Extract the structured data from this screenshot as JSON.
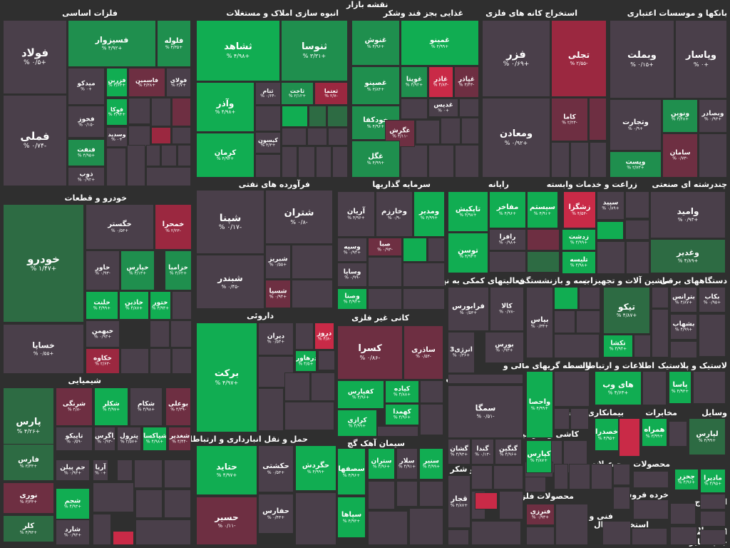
{
  "header": {
    "title": "نقشه بازار"
  },
  "colors": {
    "strong_green": "#11ad52",
    "green": "#1f8f4e",
    "dark_green": "#2d6b43",
    "neutral": "#4a3f4a",
    "dark_red": "#6e2f42",
    "red": "#9b2840",
    "bright_red": "#c92a47",
    "background": "#2f2f2f"
  },
  "sectors": [
    {
      "label": "فلزات اساسی",
      "symbols": [
        {
          "name": "فولاد",
          "change": "+۰/۵ %",
          "color": "neutral"
        },
        {
          "name": "فملی",
          "change": "-۰/۷۴ %",
          "color": "neutral"
        },
        {
          "name": "فسپزوار",
          "change": "+۴/۹۲ %",
          "color": "green"
        },
        {
          "name": "فلوله",
          "change": "+۴/۳۵ %",
          "color": "green"
        },
        {
          "name": "میدکو",
          "change": "+۰ %",
          "color": "neutral"
        },
        {
          "name": "فزرین",
          "change": "+۴/۶۳ %",
          "color": "strong_green"
        },
        {
          "name": "فاسمین",
          "change": "+۴/۳۸ %",
          "color": "dark_red"
        },
        {
          "name": "فولای",
          "change": "+۳/۷ %",
          "color": "neutral"
        },
        {
          "name": "فخوز",
          "change": "-۰/۱۵ %",
          "color": "neutral"
        },
        {
          "name": "فوکا",
          "change": "+۴/۹۴ %",
          "color": "strong_green"
        },
        {
          "name": "وسدید",
          "change": "+۰ %",
          "color": "neutral"
        },
        {
          "name": "فنفت",
          "change": "+۴/۹۵ %",
          "color": "green"
        },
        {
          "name": "ذوب",
          "change": "+۰/۹۲ %",
          "color": "neutral"
        }
      ]
    },
    {
      "label": "انبوه سازی املاک و مستغلات",
      "symbols": [
        {
          "name": "ثشاهد",
          "change": "+۴/۹۸ %",
          "color": "strong_green"
        },
        {
          "name": "ثنوسا",
          "change": "+۳/۳۱ %",
          "color": "green"
        },
        {
          "name": "وآذر",
          "change": "+۴/۹۸ %",
          "color": "strong_green"
        },
        {
          "name": "ثاخت",
          "change": "+۲/۱۲ %",
          "color": "green"
        },
        {
          "name": "ثنام",
          "change": "-۰/۶۴ %",
          "color": "neutral"
        },
        {
          "name": "ثعتما",
          "change": "-۲/۷ %",
          "color": "red"
        },
        {
          "name": "کرمان",
          "change": "+۴/۹۴ %",
          "color": "strong_green"
        },
        {
          "name": "کیسون",
          "change": "+۴/۳ %",
          "color": "neutral"
        }
      ]
    },
    {
      "label": "غذایی بجز قند وشکر",
      "symbols": [
        {
          "name": "غنوش",
          "change": "+۴/۹۶ %",
          "color": "green"
        },
        {
          "name": "غمینو",
          "change": "+۴/۹۹ %",
          "color": "strong_green"
        },
        {
          "name": "غصینو",
          "change": "+۳/۸۴ %",
          "color": "green"
        },
        {
          "name": "غویتا",
          "change": "+۴/۹۲ %",
          "color": "green"
        },
        {
          "name": "غاذر",
          "change": "-۴/۸۳ %",
          "color": "bright_red"
        },
        {
          "name": "غپاذر",
          "change": "-۳/۴۳ %",
          "color": "dark_red"
        },
        {
          "name": "غدیس",
          "change": "+۰ %",
          "color": "neutral"
        },
        {
          "name": "خودکفا",
          "change": "+۴/۹۶ %",
          "color": "green"
        },
        {
          "name": "غگرش",
          "change": "-۴/۱۱ %",
          "color": "dark_red"
        },
        {
          "name": "غگل",
          "change": "+۴/۹۹ %",
          "color": "green"
        }
      ]
    },
    {
      "label": "استخراج کانه های فلزی",
      "symbols": [
        {
          "name": "فزر",
          "change": "+۰/۶۹ %",
          "color": "neutral"
        },
        {
          "name": "تجلی",
          "change": "-۲/۵۵ %",
          "color": "red"
        },
        {
          "name": "ومعادن",
          "change": "+۰/۹۲ %",
          "color": "neutral"
        },
        {
          "name": "کاما",
          "change": "-۲/۲۳ %",
          "color": "dark_red"
        }
      ]
    },
    {
      "label": "بانکها و موسسات اعتباری",
      "symbols": [
        {
          "name": "وبملت",
          "change": "+۰/۱۵ %",
          "color": "neutral"
        },
        {
          "name": "وپاسار",
          "change": "+۰ %",
          "color": "neutral"
        },
        {
          "name": "وتجارت",
          "change": "+۰/۹ %",
          "color": "neutral"
        },
        {
          "name": "ونوین",
          "change": "+۴/۴۸ %",
          "color": "green"
        },
        {
          "name": "وبصادر",
          "change": "+۰/۹۳ %",
          "color": "neutral"
        },
        {
          "name": "وپست",
          "change": "+۲/۷۳ %",
          "color": "green"
        },
        {
          "name": "سامان",
          "change": "-۰/۷۳ %",
          "color": "dark_red"
        }
      ]
    },
    {
      "label": "خودرو و قطعات",
      "symbols": [
        {
          "name": "خودرو",
          "change": "+۱/۴۷ %",
          "color": "dark_green"
        },
        {
          "name": "خگستر",
          "change": "+۰/۵۳ %",
          "color": "neutral"
        },
        {
          "name": "خمحرا",
          "change": "-۲/۲۳ %",
          "color": "red"
        },
        {
          "name": "خاور",
          "change": "-۰/۹۳ %",
          "color": "neutral"
        },
        {
          "name": "خپارس",
          "change": "+۴/۱۳ %",
          "color": "green"
        },
        {
          "name": "خزامیا",
          "change": "+۴/۶۲ %",
          "color": "green"
        },
        {
          "name": "خساپا",
          "change": "+۰/۵۵ %",
          "color": "neutral"
        },
        {
          "name": "خلنت",
          "change": "+۴/۹۹ %",
          "color": "strong_green"
        },
        {
          "name": "خاذین",
          "change": "+۴/۸۷ %",
          "color": "strong_green"
        },
        {
          "name": "ختور",
          "change": "+۴/۹۴ %",
          "color": "strong_green"
        },
        {
          "name": "خبهمن",
          "change": "+۰/۹۳ %",
          "color": "neutral"
        },
        {
          "name": "خکاوه",
          "change": "-۲/۶۳ %",
          "color": "red"
        }
      ]
    },
    {
      "label": "فرآورده های نفتی",
      "symbols": [
        {
          "name": "شپنا",
          "change": "-۰/۱۷ %",
          "color": "neutral"
        },
        {
          "name": "شتران",
          "change": "-۰/۸ %",
          "color": "neutral"
        },
        {
          "name": "شبریز",
          "change": "+۰/۵۵ %",
          "color": "neutral"
        },
        {
          "name": "شبندر",
          "change": "-۰/۴۵ %",
          "color": "neutral"
        },
        {
          "name": "شسپا",
          "change": "+۰/۹۴ %",
          "color": "dark_red"
        }
      ]
    },
    {
      "label": "سرمایه گذاریها",
      "symbols": [
        {
          "name": "آریان",
          "change": "+۴/۹۶ %",
          "color": "neutral"
        },
        {
          "name": "وخارزم",
          "change": "-۰/۹ %",
          "color": "neutral"
        },
        {
          "name": "ومدیر",
          "change": "+۴/۹۹ %",
          "color": "strong_green"
        },
        {
          "name": "وسپه",
          "change": "+۰/۹۴ %",
          "color": "neutral"
        },
        {
          "name": "صبا",
          "change": "-۰/۹۳ %",
          "color": "dark_red"
        },
        {
          "name": "وساپا",
          "change": "-۰/۹۹ %",
          "color": "neutral"
        },
        {
          "name": "وصنا",
          "change": "+۴/۹۴ %",
          "color": "strong_green"
        }
      ]
    },
    {
      "label": "رایانه",
      "symbols": [
        {
          "name": "تاپکیش",
          "change": "+۴/۹۸ %",
          "color": "strong_green"
        },
        {
          "name": "مفاخر",
          "change": "+۴/۹۶ %",
          "color": "strong_green"
        },
        {
          "name": "سیستم",
          "change": "+۴/۹۱ %",
          "color": "strong_green"
        },
        {
          "name": "رافزا",
          "change": "+۰/۹۸ %",
          "color": "neutral"
        },
        {
          "name": "توسن",
          "change": "+۴/۹۴ %",
          "color": "strong_green"
        }
      ]
    },
    {
      "label": "زراعت و خدمات وابسته",
      "symbols": [
        {
          "name": "زشگزا",
          "change": "-۴/۵۳ %",
          "color": "bright_red"
        },
        {
          "name": "زدشت",
          "change": "+۴/۹۹ %",
          "color": "strong_green"
        },
        {
          "name": "تلیسه",
          "change": "+۴/۹۸ %",
          "color": "strong_green"
        },
        {
          "name": "سپید",
          "change": "+۰/۸۹ %",
          "color": "neutral"
        }
      ]
    },
    {
      "label": "چندرشته ای صنعتی",
      "symbols": [
        {
          "name": "وامید",
          "change": "+۰/۹۳ %",
          "color": "neutral"
        },
        {
          "name": "وغدیر",
          "change": "+۴/۸۹ %",
          "color": "dark_green"
        }
      ]
    },
    {
      "label": "داروئی",
      "symbols": [
        {
          "name": "برکت",
          "change": "+۴/۹۷ %",
          "color": "strong_green"
        },
        {
          "name": "دیران",
          "change": "+۰/۵۳ %",
          "color": "neutral"
        },
        {
          "name": "دروز",
          "change": "-۴/۸ %",
          "color": "bright_red"
        },
        {
          "name": "درهاور",
          "change": "+۴/۵ %",
          "color": "strong_green"
        }
      ]
    },
    {
      "label": "کانی غیر فلزی",
      "symbols": [
        {
          "name": "کسرا",
          "change": "-۰/۸۶ %",
          "color": "dark_red"
        },
        {
          "name": "ساذری",
          "change": "-۰/۵۳ %",
          "color": "dark_red"
        },
        {
          "name": "کفپارس",
          "change": "+۴/۹۶ %",
          "color": "strong_green"
        },
        {
          "name": "کیاده",
          "change": "+۴/۸۸ %",
          "color": "strong_green"
        },
        {
          "name": "کرازی",
          "change": "+۴/۹۹ %",
          "color": "strong_green"
        },
        {
          "name": "کهمدا",
          "change": "+۴/۹۶ %",
          "color": "strong_green"
        }
      ]
    },
    {
      "label": "فعالیتهای کمکی به نهاد",
      "symbols": [
        {
          "name": "فرابورس",
          "change": "+۰/۵۳ %",
          "color": "neutral"
        },
        {
          "name": "کالا",
          "change": "-۰/۷۸ %",
          "color": "neutral"
        },
        {
          "name": "انرژی3",
          "change": "+۰/۳۶ %",
          "color": "neutral"
        },
        {
          "name": "بورس",
          "change": "+۰/۹۳ %",
          "color": "neutral"
        }
      ]
    },
    {
      "label": "بیمه و بازنشستگی",
      "symbols": [
        {
          "name": "بپاس",
          "change": "+۰/۳۴ %",
          "color": "neutral"
        }
      ]
    },
    {
      "label": "ماشین آلات و تجهیزات",
      "symbols": [
        {
          "name": "تیکو",
          "change": "+۴/۸۷ %",
          "color": "dark_green"
        },
        {
          "name": "تکشا",
          "change": "+۴/۹۴ %",
          "color": "strong_green"
        }
      ]
    },
    {
      "label": "دستگاههای برقی",
      "symbols": [
        {
          "name": "بترانس",
          "change": "+۴/۸۷ %",
          "color": "neutral"
        },
        {
          "name": "بکاب",
          "change": "+۰/۹۵ %",
          "color": "neutral"
        },
        {
          "name": "بشهاب",
          "change": "+۴/۹۹ %",
          "color": "neutral"
        }
      ]
    },
    {
      "label": "هتل و رستوران",
      "symbols": [
        {
          "name": "سمگا",
          "change": "-۰/۵۱ %",
          "color": "neutral"
        },
        {
          "name": "گشان",
          "change": "+۴/۹۳ %",
          "color": "neutral"
        },
        {
          "name": "گندا",
          "change": "-۰/۱۳ %",
          "color": "neutral"
        },
        {
          "name": "گنگین",
          "change": "+۴/۹۶ %",
          "color": "neutral"
        }
      ]
    },
    {
      "label": "واسطه گریهای مالی و",
      "symbols": [
        {
          "name": "واحصا",
          "change": "+۴/۹۹ %",
          "color": "strong_green"
        }
      ]
    },
    {
      "label": "اطلاعات و ارتباطات",
      "symbols": [
        {
          "name": "های وب",
          "change": "+۴/۶۳ %",
          "color": "strong_green"
        }
      ]
    },
    {
      "label": "لاستیک و پلاستیک",
      "symbols": [
        {
          "name": "پاسا",
          "change": "+۴/۹۳ %",
          "color": "strong_green"
        }
      ]
    },
    {
      "label": "شیمیایی",
      "symbols": [
        {
          "name": "پارس",
          "change": "+۴/۲۶ %",
          "color": "dark_green"
        },
        {
          "name": "شرنگی",
          "change": "-۲/۸ %",
          "color": "dark_red"
        },
        {
          "name": "شکلر",
          "change": "+۴/۹۷ %",
          "color": "strong_green"
        },
        {
          "name": "شکام",
          "change": "+۴/۹۸ %",
          "color": "neutral"
        },
        {
          "name": "بوعلی",
          "change": "-۴/۳۹ %",
          "color": "dark_red"
        },
        {
          "name": "فارس",
          "change": "+۳/۳۳ %",
          "color": "dark_green"
        },
        {
          "name": "تاپیکو",
          "change": "-۰/۵۹ %",
          "color": "neutral"
        },
        {
          "name": "زاگرس",
          "change": "-۰/۹۳ %",
          "color": "neutral"
        },
        {
          "name": "پترول",
          "change": "+۲/۵۷ %",
          "color": "neutral"
        },
        {
          "name": "شپاکسا",
          "change": "+۴/۹۸ %",
          "color": "strong_green"
        },
        {
          "name": "شغدیر",
          "change": "-۴/۴۴ %",
          "color": "dark_red"
        },
        {
          "name": "جم پیلن",
          "change": "+۰/۹۳ %",
          "color": "neutral"
        },
        {
          "name": "آریا",
          "change": "+۰ %",
          "color": "neutral"
        },
        {
          "name": "نوری",
          "change": "+۳/۳۳ %",
          "color": "dark_red"
        },
        {
          "name": "شجم",
          "change": "+۴/۹۳ %",
          "color": "strong_green"
        },
        {
          "name": "کلر",
          "change": "+۴/۹۳ %",
          "color": "dark_green"
        },
        {
          "name": "شارد",
          "change": "+۰/۹۳ %",
          "color": "neutral"
        }
      ]
    },
    {
      "label": "حمل و نقل انبارداری و ارتباطات",
      "symbols": [
        {
          "name": "حتاید",
          "change": "+۴/۹۷ %",
          "color": "strong_green"
        },
        {
          "name": "حکشتی",
          "change": "+۰/۵۳ %",
          "color": "neutral"
        },
        {
          "name": "حگردش",
          "change": "+۴/۹۹ %",
          "color": "strong_green"
        },
        {
          "name": "حسیر",
          "change": "-۰/۱۱ %",
          "color": "dark_red"
        },
        {
          "name": "حفارس",
          "change": "+۰/۴۳ %",
          "color": "neutral"
        }
      ]
    },
    {
      "label": "سیمان آهک گچ",
      "symbols": [
        {
          "name": "سصفها",
          "change": "+۴/۹۶ %",
          "color": "strong_green"
        },
        {
          "name": "ستران",
          "change": "+۴/۹۶ %",
          "color": "strong_green"
        },
        {
          "name": "سلار",
          "change": "+۴/۹۱ %",
          "color": "neutral"
        },
        {
          "name": "سنیر",
          "change": "+۴/۹۹ %",
          "color": "strong_green"
        },
        {
          "name": "سپاها",
          "change": "+۴/۹۳ %",
          "color": "strong_green"
        }
      ]
    },
    {
      "label": "قند و شکر",
      "symbols": [
        {
          "name": "قجار",
          "change": "+۴/۸۷ %",
          "color": "neutral"
        }
      ]
    },
    {
      "label": "کاشی و سرامیک",
      "symbols": [
        {
          "name": "کپارس",
          "change": "+۴/۸۷ %",
          "color": "strong_green"
        }
      ]
    },
    {
      "label": "محصولات فلزی",
      "symbols": [
        {
          "name": "فنرزی",
          "change": "+۰/۹۳ %",
          "color": "dark_red"
        }
      ]
    },
    {
      "label": "بیمانکاری صنعتی",
      "symbols": [
        {
          "name": "خصدرا",
          "change": "+۴/۹۵ %",
          "color": "strong_green"
        }
      ]
    },
    {
      "label": "مخابرات",
      "symbols": [
        {
          "name": "همراه",
          "change": "+۳/۹۹ %",
          "color": "strong_green"
        }
      ]
    },
    {
      "label": "وسایل",
      "symbols": [
        {
          "name": "لپارس",
          "change": "+۴/۹۹ %",
          "color": "dark_green"
        }
      ]
    },
    {
      "label": "محصولات",
      "symbols": [
        {
          "name": "چخزر",
          "change": "+۴/۹۶ %",
          "color": "strong_green"
        }
      ]
    },
    {
      "label": "محصولات",
      "symbols": [
        {
          "name": "مادیرا",
          "change": "+۴/۹۵ %",
          "color": "strong_green"
        }
      ]
    },
    {
      "label": "عرضه",
      "symbols": []
    },
    {
      "label": "خرده فروشی",
      "symbols": []
    },
    {
      "label": "استخراج زغال",
      "symbols": []
    },
    {
      "label": "فنی و",
      "symbols": []
    },
    {
      "label": "استخراج",
      "symbols": []
    },
    {
      "label": "استخ منسر",
      "symbols": []
    },
    {
      "label": "محصولا",
      "symbols": []
    },
    {
      "label": "جاپ سایر",
      "symbols": []
    },
    {
      "label": "فعا",
      "symbols": []
    }
  ]
}
